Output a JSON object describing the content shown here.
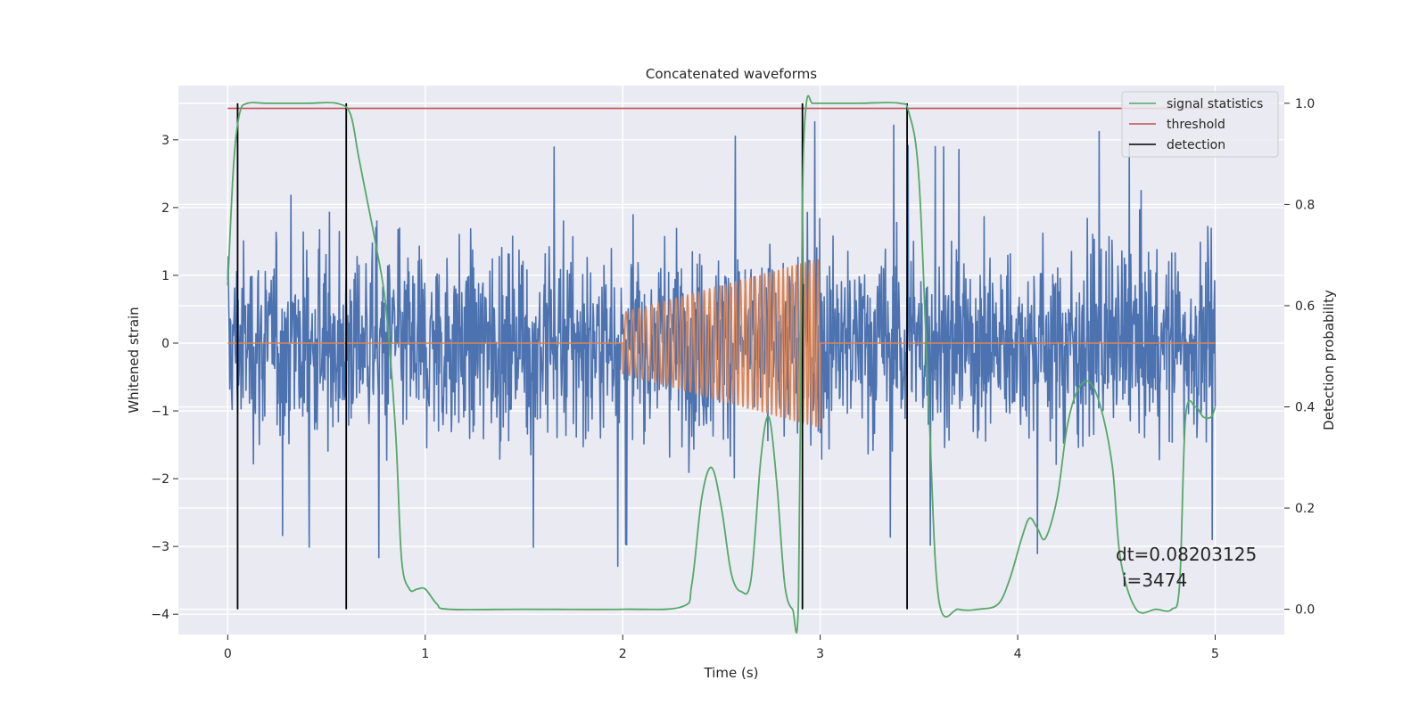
{
  "chart_data": {
    "type": "line",
    "title": "Concatenated waveforms",
    "xlabel": "Time (s)",
    "ylabel_left": "Whitened strain",
    "ylabel_right": "Detection probability",
    "xlim": [
      -0.25,
      5.35
    ],
    "ylim_left": [
      -4.3,
      3.8
    ],
    "ylim_right": [
      -0.05,
      1.035
    ],
    "x_ticks": [
      0,
      1,
      2,
      3,
      4,
      5
    ],
    "y_ticks_left": [
      -4,
      -3,
      -2,
      -1,
      0,
      1,
      2,
      3
    ],
    "y_ticks_right": [
      0.0,
      0.2,
      0.4,
      0.6,
      0.8,
      1.0
    ],
    "grid": true,
    "legend_position": "top-right",
    "legend": [
      {
        "label": "signal statistics",
        "color": "#55a868"
      },
      {
        "label": "threshold",
        "color": "#c44e52"
      },
      {
        "label": "detection",
        "color": "#000000"
      }
    ],
    "noise": {
      "axis": "left",
      "color": "#4c72b0",
      "x_range": [
        0,
        5
      ],
      "typical_amplitude": 1.5,
      "peak_amplitude": 3.3
    },
    "chirp": {
      "axis": "left",
      "color": "#dd8452",
      "x_start": 2.0,
      "x_end": 3.0,
      "amp_start": 0.45,
      "amp_end": 1.25,
      "flat_value": 0
    },
    "threshold": {
      "axis": "right",
      "value": 0.99,
      "x_range": [
        0,
        5
      ]
    },
    "detections": [
      0.05,
      0.6,
      2.91,
      3.44
    ],
    "signal_statistics": {
      "axis": "right",
      "x": [
        0.0,
        0.03,
        0.06,
        0.1,
        0.2,
        0.4,
        0.55,
        0.62,
        0.66,
        0.7,
        0.75,
        0.8,
        0.85,
        0.88,
        0.92,
        0.96,
        1.0,
        1.06,
        1.12,
        1.5,
        2.0,
        2.3,
        2.35,
        2.4,
        2.45,
        2.5,
        2.55,
        2.6,
        2.65,
        2.7,
        2.74,
        2.78,
        2.82,
        2.86,
        2.89,
        2.91,
        2.93,
        2.96,
        3.0,
        3.2,
        3.4,
        3.45,
        3.5,
        3.55,
        3.6,
        3.7,
        3.8,
        3.9,
        3.96,
        4.02,
        4.06,
        4.1,
        4.14,
        4.2,
        4.25,
        4.3,
        4.36,
        4.42,
        4.48,
        4.52,
        4.6,
        4.7,
        4.78,
        4.82,
        4.85,
        4.9,
        4.94,
        4.98,
        5.0
      ],
      "y": [
        0.64,
        0.88,
        0.98,
        1.0,
        1.0,
        1.0,
        1.0,
        0.98,
        0.9,
        0.82,
        0.72,
        0.6,
        0.35,
        0.1,
        0.04,
        0.04,
        0.04,
        0.01,
        0.0,
        0.0,
        0.0,
        0.005,
        0.05,
        0.22,
        0.28,
        0.2,
        0.07,
        0.035,
        0.06,
        0.3,
        0.38,
        0.25,
        0.05,
        0.0,
        0.02,
        0.8,
        1.0,
        1.0,
        1.0,
        1.0,
        1.0,
        0.98,
        0.85,
        0.4,
        0.02,
        0.0,
        0.0,
        0.01,
        0.06,
        0.14,
        0.18,
        0.16,
        0.14,
        0.22,
        0.36,
        0.43,
        0.45,
        0.4,
        0.28,
        0.1,
        0.0,
        0.0,
        0.0,
        0.05,
        0.38,
        0.4,
        0.38,
        0.38,
        0.4
      ]
    },
    "annotations": [
      "dt=0.08203125",
      "i=3474"
    ]
  }
}
